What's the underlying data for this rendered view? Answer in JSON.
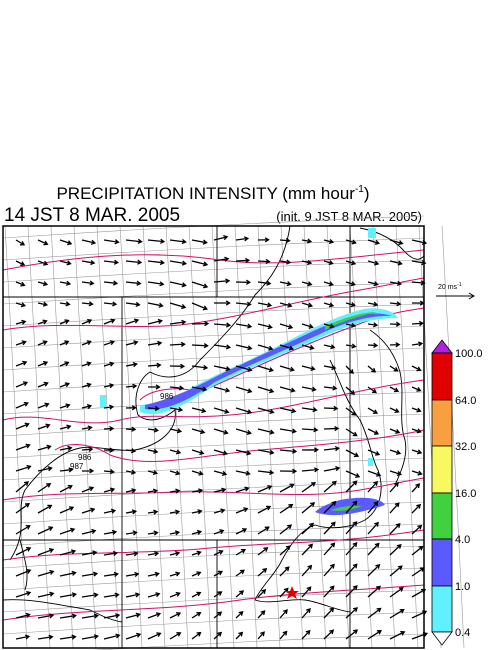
{
  "header": {
    "title": {
      "text": "PRECIPITATION INTENSITY (mm hour",
      "superscript": "-1",
      "tail": ")"
    },
    "valid_time": "14 JST 8 MAR. 2005",
    "init_time": "(init. 9 JST 8 MAR. 2005)"
  },
  "wind_scale": {
    "text": "20 ms",
    "superscript": "-1"
  },
  "colorbar": {
    "labels": [
      "100.0",
      "64.0",
      "32.0",
      "16.0",
      "4.0",
      "1.0",
      "0.4"
    ]
  },
  "isobar_labels": [
    "986",
    "986",
    "987"
  ]
}
